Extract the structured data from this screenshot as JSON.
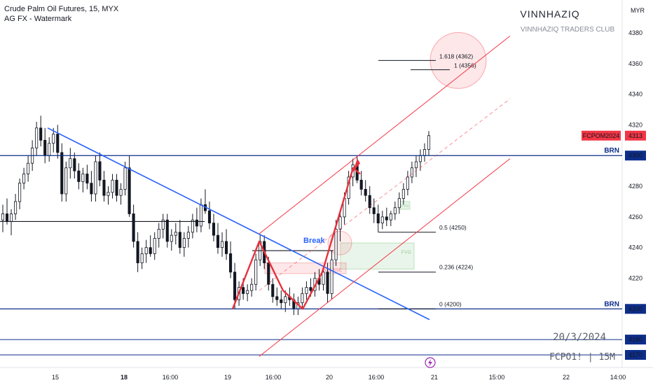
{
  "header": {
    "symbol_line": "Crude Palm Oil Futures, 15, MYX",
    "indicator_line": "AG FX - Watermark"
  },
  "watermark": {
    "title": "VINNHAZIQ",
    "subtitle": "VINNHAZIQ TRADERS CLUB",
    "date": "20/3/2024",
    "ticker_tf": "FCPO1! | 15M"
  },
  "axis": {
    "currency": "MYR",
    "ylim": [
      4163,
      4400
    ],
    "y_ticks": [
      4380,
      4360,
      4340,
      4320,
      4300,
      4280,
      4260,
      4240,
      4220,
      4200,
      4180,
      4170
    ],
    "highlighted_ticks": [
      4300,
      4200,
      4180,
      4170
    ],
    "x_ticks": [
      "15",
      "18",
      "16:00",
      "19",
      "16:00",
      "20",
      "16:00",
      "21",
      "15:00",
      "22",
      "14:00"
    ],
    "bold_x_ticks": [
      "18"
    ]
  },
  "price_tag": {
    "symbol": "FCPOM2024",
    "value": "4313",
    "color": "#f23645"
  },
  "levels": {
    "brn_upper": {
      "label": "BRN",
      "value": 4300
    },
    "brn_lower": {
      "label": "BRN",
      "value": 4200
    }
  },
  "fibonacci": [
    {
      "label": "1.618 (4362)",
      "value": 4362
    },
    {
      "label": "1 (4356)",
      "value": 4356
    },
    {
      "label": "0.5 (4250)",
      "value": 4250
    },
    {
      "label": "0.236 (4224)",
      "value": 4224
    },
    {
      "label": "0 (4200)",
      "value": 4200
    }
  ],
  "annotations": {
    "break": "Break",
    "fvg": "FVG",
    "inverse": "INVERSE",
    "fvg_small": "FVG"
  },
  "colors": {
    "up": "#131722",
    "down": "#131722",
    "blue_line": "#0d2d8a",
    "trend_blue": "#2962ff",
    "channel_red": "#f23645",
    "zigzag_red": "#e8313e"
  },
  "chart_data": {
    "type": "candlestick",
    "title": "Crude Palm Oil Futures, 15, MYX",
    "ylabel": "MYR",
    "ylim": [
      4163,
      4400
    ],
    "candles": [
      [
        4258,
        4268,
        4250,
        4262
      ],
      [
        4262,
        4272,
        4255,
        4257
      ],
      [
        4257,
        4265,
        4248,
        4262
      ],
      [
        4262,
        4275,
        4258,
        4270
      ],
      [
        4270,
        4285,
        4265,
        4282
      ],
      [
        4282,
        4292,
        4278,
        4288
      ],
      [
        4288,
        4300,
        4283,
        4295
      ],
      [
        4295,
        4310,
        4290,
        4305
      ],
      [
        4305,
        4322,
        4300,
        4318
      ],
      [
        4318,
        4326,
        4306,
        4310
      ],
      [
        4310,
        4318,
        4295,
        4300
      ],
      [
        4300,
        4312,
        4296,
        4308
      ],
      [
        4308,
        4318,
        4302,
        4314
      ],
      [
        4314,
        4320,
        4298,
        4302
      ],
      [
        4302,
        4308,
        4270,
        4275
      ],
      [
        4275,
        4296,
        4270,
        4292
      ],
      [
        4292,
        4305,
        4285,
        4298
      ],
      [
        4298,
        4302,
        4285,
        4290
      ],
      [
        4290,
        4295,
        4278,
        4283
      ],
      [
        4283,
        4292,
        4276,
        4288
      ],
      [
        4288,
        4294,
        4278,
        4282
      ],
      [
        4282,
        4290,
        4270,
        4275
      ],
      [
        4275,
        4300,
        4270,
        4296
      ],
      [
        4296,
        4302,
        4280,
        4284
      ],
      [
        4284,
        4290,
        4270,
        4274
      ],
      [
        4274,
        4280,
        4268,
        4276
      ],
      [
        4276,
        4288,
        4272,
        4284
      ],
      [
        4284,
        4288,
        4270,
        4274
      ],
      [
        4274,
        4282,
        4268,
        4278
      ],
      [
        4278,
        4296,
        4274,
        4292
      ],
      [
        4292,
        4300,
        4260,
        4262
      ],
      [
        4262,
        4268,
        4240,
        4244
      ],
      [
        4244,
        4250,
        4224,
        4230
      ],
      [
        4230,
        4240,
        4226,
        4236
      ],
      [
        4236,
        4245,
        4230,
        4240
      ],
      [
        4240,
        4248,
        4234,
        4236
      ],
      [
        4236,
        4250,
        4232,
        4246
      ],
      [
        4246,
        4256,
        4240,
        4252
      ],
      [
        4252,
        4262,
        4246,
        4258
      ],
      [
        4258,
        4262,
        4240,
        4244
      ],
      [
        4244,
        4252,
        4238,
        4248
      ],
      [
        4248,
        4256,
        4242,
        4250
      ],
      [
        4250,
        4258,
        4236,
        4240
      ],
      [
        4240,
        4250,
        4234,
        4246
      ],
      [
        4246,
        4254,
        4240,
        4250
      ],
      [
        4250,
        4262,
        4246,
        4258
      ],
      [
        4258,
        4266,
        4250,
        4254
      ],
      [
        4254,
        4272,
        4250,
        4268
      ],
      [
        4268,
        4278,
        4262,
        4264
      ],
      [
        4264,
        4270,
        4252,
        4256
      ],
      [
        4256,
        4262,
        4244,
        4248
      ],
      [
        4248,
        4256,
        4236,
        4240
      ],
      [
        4240,
        4250,
        4234,
        4244
      ],
      [
        4244,
        4252,
        4232,
        4236
      ],
      [
        4236,
        4244,
        4220,
        4224
      ],
      [
        4224,
        4230,
        4200,
        4206
      ],
      [
        4206,
        4218,
        4202,
        4214
      ],
      [
        4214,
        4220,
        4206,
        4210
      ],
      [
        4210,
        4216,
        4205,
        4212
      ],
      [
        4212,
        4220,
        4208,
        4216
      ],
      [
        4216,
        4236,
        4212,
        4232
      ],
      [
        4232,
        4248,
        4228,
        4244
      ],
      [
        4244,
        4248,
        4226,
        4230
      ],
      [
        4230,
        4234,
        4212,
        4216
      ],
      [
        4216,
        4220,
        4204,
        4208
      ],
      [
        4208,
        4214,
        4202,
        4206
      ],
      [
        4206,
        4212,
        4200,
        4204
      ],
      [
        4204,
        4212,
        4198,
        4208
      ],
      [
        4208,
        4214,
        4202,
        4206
      ],
      [
        4206,
        4210,
        4196,
        4200
      ],
      [
        4200,
        4208,
        4196,
        4204
      ],
      [
        4204,
        4214,
        4200,
        4210
      ],
      [
        4210,
        4218,
        4206,
        4214
      ],
      [
        4214,
        4220,
        4208,
        4212
      ],
      [
        4212,
        4224,
        4208,
        4220
      ],
      [
        4220,
        4226,
        4212,
        4216
      ],
      [
        4216,
        4228,
        4212,
        4224
      ],
      [
        4224,
        4230,
        4204,
        4210
      ],
      [
        4210,
        4238,
        4206,
        4232
      ],
      [
        4232,
        4258,
        4228,
        4252
      ],
      [
        4252,
        4265,
        4244,
        4260
      ],
      [
        4260,
        4276,
        4255,
        4272
      ],
      [
        4272,
        4290,
        4268,
        4286
      ],
      [
        4286,
        4298,
        4280,
        4294
      ],
      [
        4294,
        4300,
        4282,
        4284
      ],
      [
        4284,
        4290,
        4274,
        4278
      ],
      [
        4278,
        4284,
        4270,
        4274
      ],
      [
        4274,
        4280,
        4262,
        4266
      ],
      [
        4266,
        4272,
        4256,
        4262
      ],
      [
        4262,
        4268,
        4250,
        4256
      ],
      [
        4256,
        4264,
        4252,
        4260
      ],
      [
        4260,
        4266,
        4254,
        4258
      ],
      [
        4258,
        4264,
        4254,
        4262
      ],
      [
        4262,
        4270,
        4258,
        4266
      ],
      [
        4266,
        4276,
        4262,
        4272
      ],
      [
        4272,
        4282,
        4268,
        4278
      ],
      [
        4278,
        4290,
        4274,
        4286
      ],
      [
        4286,
        4296,
        4282,
        4292
      ],
      [
        4292,
        4300,
        4286,
        4296
      ],
      [
        4296,
        4304,
        4290,
        4300
      ],
      [
        4300,
        4308,
        4296,
        4304
      ],
      [
        4304,
        4316,
        4300,
        4313
      ]
    ],
    "series_names": []
  }
}
